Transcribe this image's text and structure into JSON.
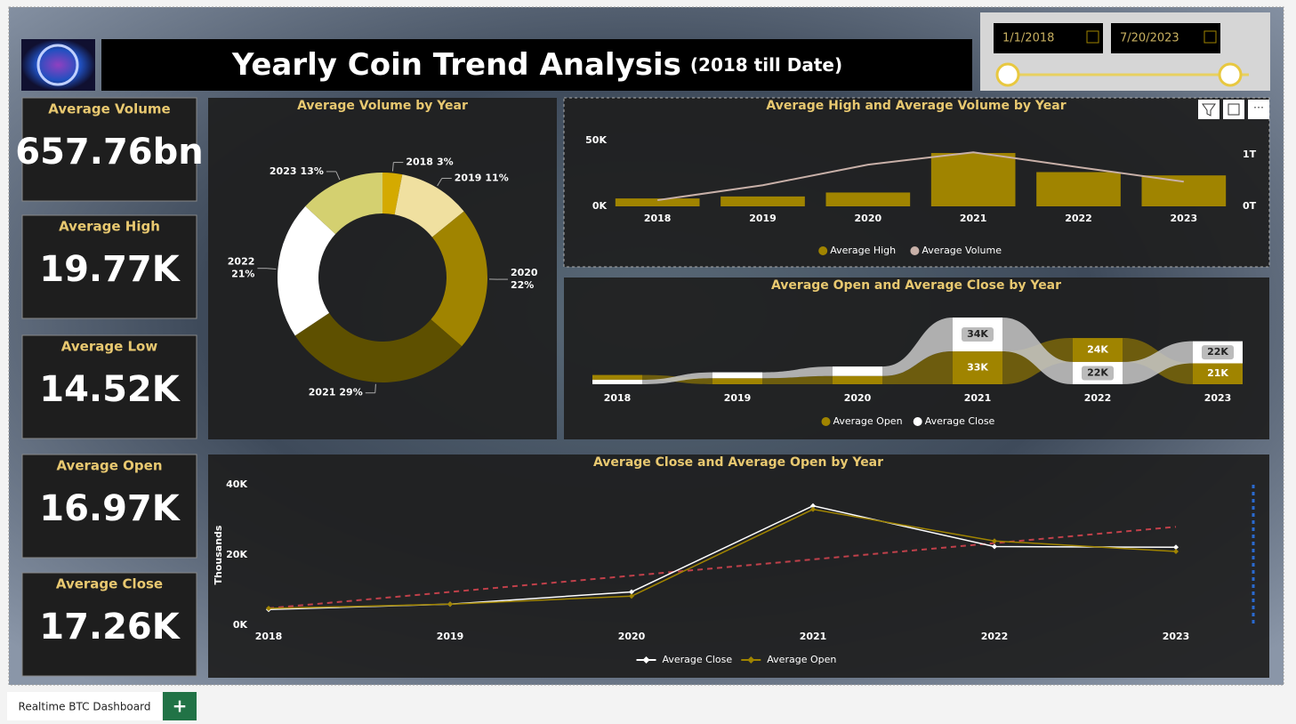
{
  "header": {
    "title": "Yearly Coin Trend Analysis",
    "subtitle": "(2018 till Date)"
  },
  "slicer": {
    "start_date": "1/1/2018",
    "end_date": "7/20/2023"
  },
  "cards": [
    {
      "label": "Average Volume",
      "value": "657.76bn"
    },
    {
      "label": "Average High",
      "value": "19.77K"
    },
    {
      "label": "Average Low",
      "value": "14.52K"
    },
    {
      "label": "Average Open",
      "value": "16.97K"
    },
    {
      "label": "Average Close",
      "value": "17.26K"
    }
  ],
  "chart_data": [
    {
      "type": "donut",
      "title": "Average Volume by Year",
      "categories": [
        "2018",
        "2019",
        "2020",
        "2021",
        "2022",
        "2023"
      ],
      "values": [
        3,
        11,
        22,
        29,
        21,
        13
      ],
      "value_labels": [
        "3%",
        "11%",
        "22%",
        "29%",
        "21%",
        "13%"
      ],
      "colors": [
        "#d4aa00",
        "#f0e0a0",
        "#a08400",
        "#5e5000",
        "#ffffff",
        "#d4d070"
      ]
    },
    {
      "type": "combo",
      "title": "Average High and Average Volume by Year",
      "categories": [
        "2018",
        "2019",
        "2020",
        "2021",
        "2022",
        "2023"
      ],
      "series": [
        {
          "name": "Average High",
          "type": "bar",
          "color": "#a08400",
          "values": [
            6000,
            7500,
            10500,
            40500,
            26000,
            23500
          ]
        },
        {
          "name": "Average Volume",
          "type": "line",
          "axis": "y2",
          "color": "#c8b0a8",
          "values": [
            120000000000,
            410000000000,
            810000000000,
            1050000000000,
            760000000000,
            480000000000
          ]
        }
      ],
      "ylim": [
        0,
        52000
      ],
      "yticks": [
        {
          "value": 0,
          "label": "0K"
        },
        {
          "value": 50000,
          "label": "50K"
        }
      ],
      "y2lim": [
        0,
        1330000000000
      ],
      "y2ticks": [
        {
          "value": 0,
          "label": "0T"
        },
        {
          "value": 1000000000000,
          "label": "1T"
        }
      ],
      "legend": "bottom"
    },
    {
      "type": "ribbon",
      "title": "Average Open and Average Close by Year",
      "categories": [
        "2018",
        "2019",
        "2020",
        "2021",
        "2022",
        "2023"
      ],
      "series": [
        {
          "name": "Average Open",
          "color": "#a08400",
          "values": [
            4800,
            6000,
            8300,
            33000,
            24000,
            21000
          ],
          "value_labels": [
            null,
            null,
            null,
            "33K",
            "24K",
            "21K"
          ]
        },
        {
          "name": "Average Close",
          "color": "#ffffff",
          "values": [
            4500,
            6000,
            9500,
            34000,
            22400,
            22200
          ],
          "value_labels": [
            null,
            null,
            null,
            "34K",
            "22K",
            "22K"
          ]
        }
      ],
      "legend": "bottom"
    },
    {
      "type": "line",
      "title": "Average Close and Average Open by Year",
      "y_label": "Thousands",
      "categories": [
        "2018",
        "2019",
        "2020",
        "2021",
        "2022",
        "2023"
      ],
      "series": [
        {
          "name": "Average Close",
          "color": "#ffffff",
          "values": [
            4500,
            6000,
            9500,
            34000,
            22400,
            22200
          ]
        },
        {
          "name": "Average Open",
          "color": "#a08400",
          "values": [
            4800,
            6000,
            8300,
            33000,
            24000,
            21000
          ]
        }
      ],
      "ylim": [
        0,
        40000
      ],
      "yticks": [
        {
          "value": 0,
          "label": "0K"
        },
        {
          "value": 20000,
          "label": "20K"
        },
        {
          "value": 40000,
          "label": "40K"
        }
      ],
      "trendline": true,
      "trendline_color": "#c0404a",
      "legend": "bottom"
    }
  ],
  "tabs": {
    "pages": [
      "Realtime BTC Dashboard"
    ],
    "add": "+"
  }
}
